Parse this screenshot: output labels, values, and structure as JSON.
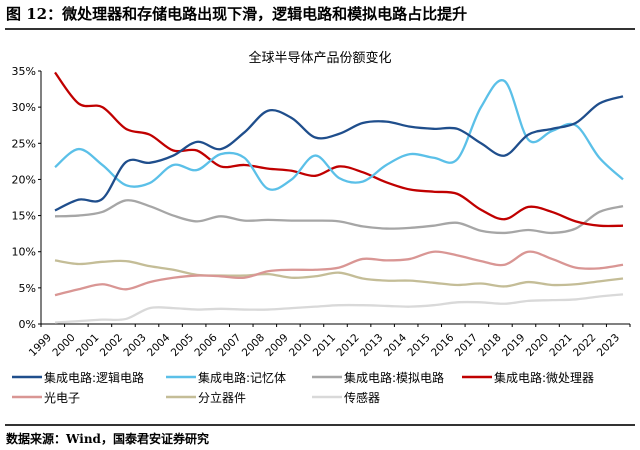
{
  "figure_title": "图 12：微处理器和存储电路出现下滑，逻辑电路和模拟电路占比提升",
  "source": "数据来源：Wind，国泰君安证券研究",
  "chart_data": {
    "type": "line",
    "title": "全球半导体产品份额变化",
    "xlabel": "",
    "ylabel": "",
    "ylim": [
      0,
      35
    ],
    "yticks": [
      "0%",
      "5%",
      "10%",
      "15%",
      "20%",
      "25%",
      "30%",
      "35%"
    ],
    "grid": false,
    "legend_placement": "bottom",
    "categories": [
      "1999",
      "2000",
      "2001",
      "2002",
      "2003",
      "2004",
      "2005",
      "2006",
      "2007",
      "2008",
      "2009",
      "2010",
      "2011",
      "2012",
      "2013",
      "2014",
      "2015",
      "2016",
      "2017",
      "2018",
      "2019",
      "2020",
      "2021",
      "2022",
      "2023"
    ],
    "series": [
      {
        "name": "集成电路:逻辑电路",
        "color": "#1f4e8c",
        "values": [
          15.7,
          17.2,
          17.3,
          22.4,
          22.3,
          23.3,
          25.2,
          24.2,
          26.5,
          29.5,
          28.5,
          25.8,
          26.3,
          27.8,
          28.0,
          27.3,
          27.0,
          27.0,
          25.0,
          23.3,
          26.2,
          27.0,
          27.8,
          30.5,
          31.5
        ]
      },
      {
        "name": "集成电路:记忆体",
        "color": "#5bc0e8",
        "values": [
          21.7,
          24.2,
          22.0,
          19.2,
          19.5,
          22.0,
          21.3,
          23.5,
          23.0,
          18.7,
          20.0,
          23.3,
          20.2,
          19.7,
          22.0,
          23.5,
          23.0,
          22.8,
          30.0,
          33.6,
          25.5,
          26.7,
          27.5,
          23.0,
          20.0
        ]
      },
      {
        "name": "集成电路:模拟电路",
        "color": "#a6a6a6",
        "values": [
          14.9,
          15.0,
          15.5,
          17.1,
          16.3,
          15.0,
          14.2,
          14.9,
          14.3,
          14.4,
          14.3,
          14.3,
          14.2,
          13.5,
          13.2,
          13.3,
          13.6,
          14.0,
          12.9,
          12.6,
          13.0,
          12.6,
          13.2,
          15.5,
          16.3
        ]
      },
      {
        "name": "集成电路:微处理器",
        "color": "#c00000",
        "values": [
          34.8,
          30.5,
          30.0,
          27.0,
          26.2,
          24.0,
          24.0,
          21.8,
          22.0,
          21.5,
          21.2,
          20.5,
          21.8,
          21.0,
          19.6,
          18.6,
          18.3,
          18.0,
          15.8,
          14.5,
          16.2,
          15.5,
          14.2,
          13.6,
          13.6
        ]
      },
      {
        "name": "光电子",
        "color": "#d99694",
        "values": [
          4.0,
          4.8,
          5.5,
          4.8,
          5.8,
          6.4,
          6.7,
          6.6,
          6.4,
          7.3,
          7.5,
          7.5,
          7.8,
          9.0,
          8.8,
          9.0,
          10.0,
          9.5,
          8.7,
          8.2,
          10.0,
          9.0,
          7.8,
          7.7,
          8.2
        ]
      },
      {
        "name": "分立器件",
        "color": "#c4bd97",
        "values": [
          8.8,
          8.3,
          8.6,
          8.7,
          8.0,
          7.5,
          6.8,
          6.7,
          6.7,
          6.9,
          6.4,
          6.6,
          7.1,
          6.3,
          6.0,
          6.0,
          5.7,
          5.4,
          5.6,
          5.2,
          5.8,
          5.4,
          5.5,
          5.9,
          6.3
        ]
      },
      {
        "name": "传感器",
        "color": "#d9d9d9",
        "values": [
          0.2,
          0.4,
          0.6,
          0.7,
          2.2,
          2.2,
          2.0,
          2.1,
          2.0,
          2.0,
          2.2,
          2.4,
          2.6,
          2.6,
          2.5,
          2.4,
          2.6,
          3.0,
          3.0,
          2.8,
          3.2,
          3.3,
          3.4,
          3.8,
          4.1
        ]
      }
    ]
  }
}
